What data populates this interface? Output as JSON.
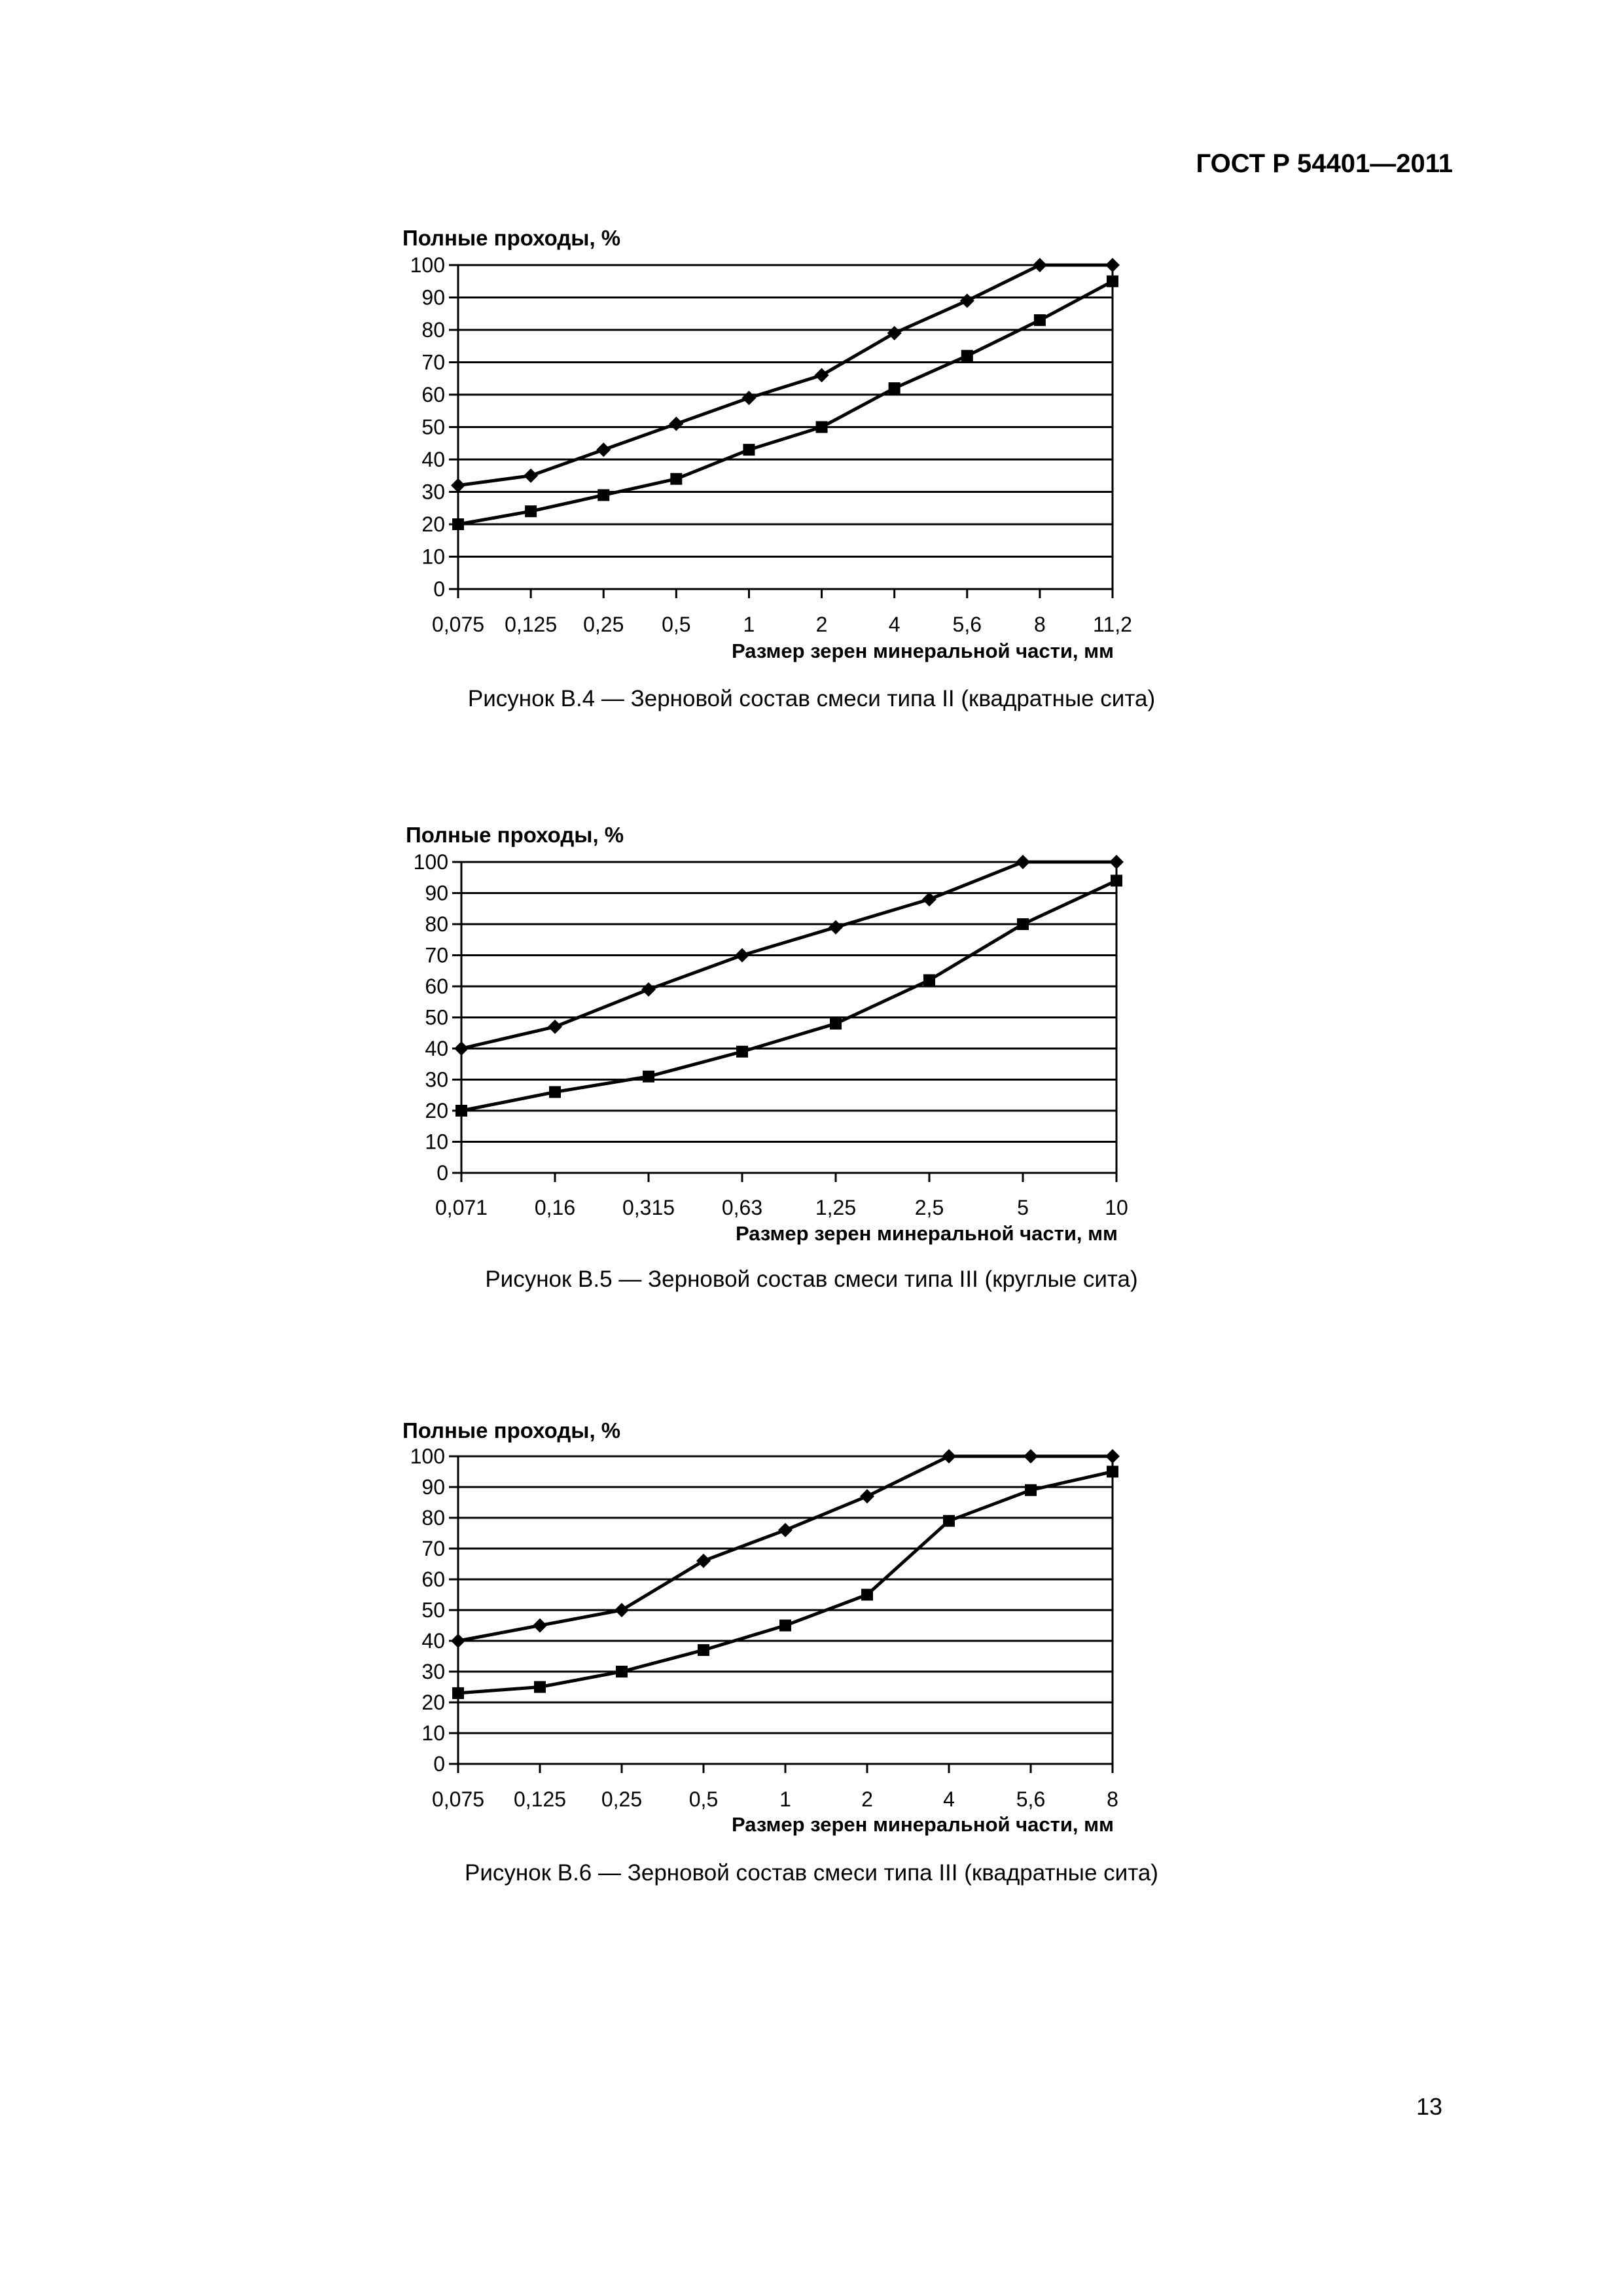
{
  "header": {
    "doc_id": "ГОСТ Р 54401—2011"
  },
  "page_number": "13",
  "figures": [
    {
      "caption": "Рисунок В.4 — Зерновой состав смеси типа II (квадратные сита)"
    },
    {
      "caption": "Рисунок В.5 — Зерновой состав смеси типа III (круглые сита)"
    },
    {
      "caption": "Рисунок В.6 — Зерновой состав смеси типа III (квадратные сита)"
    }
  ],
  "chart_data": [
    {
      "type": "line",
      "ylabel": "Полные проходы, %",
      "xlabel": "Размер зерен минеральной части, мм",
      "categories": [
        "0,075",
        "0,125",
        "0,25",
        "0,5",
        "1",
        "2",
        "4",
        "5,6",
        "8",
        "11,2"
      ],
      "ylim": [
        0,
        100
      ],
      "yticks": [
        "0",
        "10",
        "20",
        "30",
        "40",
        "50",
        "60",
        "70",
        "80",
        "90",
        "100"
      ],
      "grid": "horizontal",
      "series": [
        {
          "marker": "diamond",
          "values": [
            32,
            35,
            43,
            51,
            59,
            66,
            79,
            89,
            100,
            100
          ]
        },
        {
          "marker": "square",
          "values": [
            20,
            24,
            29,
            34,
            43,
            50,
            62,
            72,
            83,
            95
          ]
        }
      ]
    },
    {
      "type": "line",
      "ylabel": "Полные проходы, %",
      "xlabel": "Размер зерен минеральной части, мм",
      "categories": [
        "0,071",
        "0,16",
        "0,315",
        "0,63",
        "1,25",
        "2,5",
        "5",
        "10"
      ],
      "ylim": [
        0,
        100
      ],
      "yticks": [
        "0",
        "10",
        "20",
        "30",
        "40",
        "50",
        "60",
        "70",
        "80",
        "90",
        "100"
      ],
      "grid": "horizontal",
      "series": [
        {
          "marker": "diamond",
          "values": [
            40,
            47,
            59,
            70,
            79,
            88,
            100,
            100
          ]
        },
        {
          "marker": "square",
          "values": [
            20,
            26,
            31,
            39,
            48,
            62,
            80,
            94
          ]
        }
      ]
    },
    {
      "type": "line",
      "ylabel": "Полные проходы, %",
      "xlabel": "Размер зерен минеральной части, мм",
      "categories": [
        "0,075",
        "0,125",
        "0,25",
        "0,5",
        "1",
        "2",
        "4",
        "5,6",
        "8"
      ],
      "ylim": [
        0,
        100
      ],
      "yticks": [
        "0",
        "10",
        "20",
        "30",
        "40",
        "50",
        "60",
        "70",
        "80",
        "90",
        "100"
      ],
      "grid": "horizontal",
      "series": [
        {
          "marker": "diamond",
          "values": [
            40,
            45,
            50,
            66,
            76,
            87,
            100,
            100,
            100
          ]
        },
        {
          "marker": "square",
          "values": [
            23,
            25,
            30,
            37,
            45,
            55,
            79,
            89,
            95
          ]
        }
      ]
    }
  ]
}
